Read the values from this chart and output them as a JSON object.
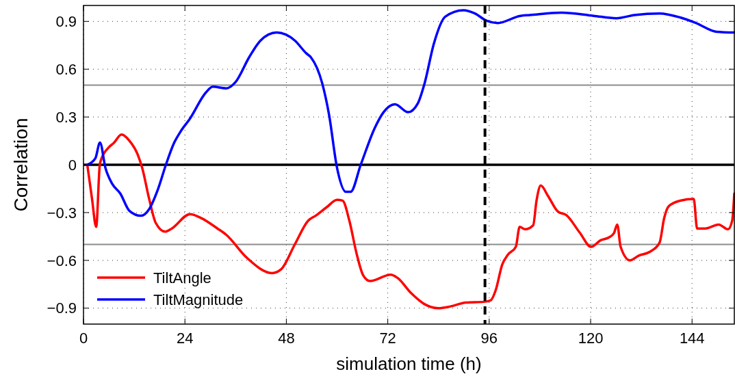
{
  "chart_data": {
    "type": "line",
    "xlabel": "simulation time (h)",
    "ylabel": "Correlation",
    "xlim": [
      0,
      154
    ],
    "xticks": [
      0,
      24,
      48,
      72,
      96,
      120,
      144
    ],
    "ylim": [
      -1,
      1
    ],
    "yticks": [
      {
        "value": -0.9,
        "label": "−0.9"
      },
      {
        "value": -0.6,
        "label": "−0.6"
      },
      {
        "value": -0.3,
        "label": "−0.3"
      },
      0,
      0.3,
      0.6,
      0.9
    ],
    "grid": true,
    "legend": "bottom left",
    "line_style": "solid",
    "ref_lines": [
      {
        "axis": "y",
        "value": 0.5,
        "color": "#8c8c8c",
        "line_style": "solid"
      },
      {
        "axis": "y",
        "value": -0.5,
        "color": "#8c8c8c",
        "line_style": "solid"
      },
      {
        "axis": "y",
        "value": 0,
        "color": "#000000",
        "line_style": "solid"
      },
      {
        "axis": "x",
        "value": 95,
        "color": "#000000",
        "line_style": "dashed"
      }
    ],
    "series": [
      {
        "name": "TiltAngle",
        "color": "#ff0000",
        "x": [
          0.9,
          2,
          3,
          3.9,
          6,
          7.1,
          9,
          10.9,
          12.8,
          13.9,
          15.5,
          17.1,
          19.3,
          20.9,
          25.2,
          27.9,
          31.7,
          33.8,
          38.7,
          44.6,
          46.8,
          50,
          53.2,
          54.9,
          57.6,
          60,
          61.3,
          62.9,
          64.6,
          66.2,
          67.8,
          72.7,
          74.3,
          77.5,
          80.7,
          84,
          86.7,
          90.5,
          94.8,
          96.4,
          97.5,
          99.1,
          100.4,
          102.3,
          103.2,
          104.5,
          106.4,
          107.2,
          108.2,
          109.9,
          112.3,
          114.2,
          117.4,
          120.1,
          122.3,
          124.4,
          125.5,
          126.3,
          127.1,
          129.3,
          131.4,
          134.1,
          136.3,
          137.4,
          138.5,
          141.2,
          144.4,
          145.2,
          147.1,
          150.3,
          152.5,
          153.5,
          154
        ],
        "values": [
          0,
          -0.21,
          -0.39,
          0.01,
          0.11,
          0.135,
          0.19,
          0.15,
          0.066,
          -0.02,
          -0.21,
          -0.365,
          -0.42,
          -0.4,
          -0.31,
          -0.335,
          -0.4,
          -0.44,
          -0.585,
          -0.68,
          -0.655,
          -0.5,
          -0.35,
          -0.32,
          -0.265,
          -0.22,
          -0.225,
          -0.35,
          -0.555,
          -0.695,
          -0.73,
          -0.69,
          -0.71,
          -0.805,
          -0.875,
          -0.9,
          -0.89,
          -0.865,
          -0.86,
          -0.85,
          -0.79,
          -0.625,
          -0.565,
          -0.515,
          -0.39,
          -0.405,
          -0.38,
          -0.225,
          -0.13,
          -0.195,
          -0.295,
          -0.315,
          -0.425,
          -0.515,
          -0.475,
          -0.455,
          -0.43,
          -0.375,
          -0.515,
          -0.6,
          -0.57,
          -0.545,
          -0.49,
          -0.335,
          -0.26,
          -0.225,
          -0.215,
          -0.4,
          -0.4,
          -0.375,
          -0.405,
          -0.35,
          -0.18
        ]
      },
      {
        "name": "TiltMagnitude",
        "color": "#0000ff",
        "x": [
          0.9,
          2.8,
          3.9,
          5.2,
          6.8,
          8.7,
          10.9,
          13.6,
          15.5,
          17.6,
          19.5,
          21.4,
          23,
          25.2,
          29,
          30.6,
          33.8,
          36,
          39.2,
          41.9,
          45.7,
          50,
          52.7,
          53.8,
          56.5,
          58.1,
          60,
          62.1,
          63.2,
          65.6,
          68.9,
          71,
          73.7,
          76.8,
          79.1,
          80.7,
          82.9,
          85.6,
          89.9,
          92.6,
          95.3,
          98,
          103.4,
          105.6,
          113.1,
          120.7,
          126.1,
          130.4,
          136.3,
          141.2,
          144.9,
          149.8,
          154
        ],
        "values": [
          0,
          0.04,
          0.14,
          -0.02,
          -0.12,
          -0.18,
          -0.29,
          -0.32,
          -0.28,
          -0.155,
          0,
          0.135,
          0.21,
          0.29,
          0.455,
          0.49,
          0.48,
          0.52,
          0.675,
          0.78,
          0.83,
          0.78,
          0.7,
          0.675,
          0.51,
          0.315,
          -0.02,
          -0.17,
          -0.17,
          0,
          0.23,
          0.33,
          0.38,
          0.33,
          0.385,
          0.51,
          0.76,
          0.93,
          0.97,
          0.95,
          0.905,
          0.89,
          0.935,
          0.94,
          0.955,
          0.935,
          0.92,
          0.94,
          0.95,
          0.925,
          0.89,
          0.835,
          0.83
        ]
      }
    ]
  }
}
